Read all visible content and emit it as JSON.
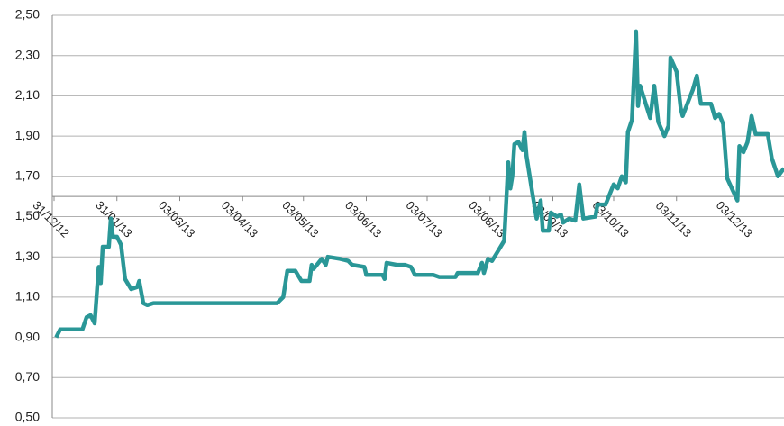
{
  "chart_data": {
    "type": "line",
    "x": [
      "2013-01-01",
      "2013-01-03",
      "2013-01-14",
      "2013-01-16",
      "2013-01-18",
      "2013-01-20",
      "2013-01-22",
      "2013-01-23",
      "2013-01-24",
      "2013-01-27",
      "2013-01-28",
      "2013-01-29",
      "2013-01-31",
      "2013-02-02",
      "2013-02-04",
      "2013-02-07",
      "2013-02-10",
      "2013-02-11",
      "2013-02-13",
      "2013-02-15",
      "2013-02-18",
      "2013-04-20",
      "2013-04-23",
      "2013-04-25",
      "2013-04-29",
      "2013-05-02",
      "2013-05-06",
      "2013-05-07",
      "2013-05-08",
      "2013-05-12",
      "2013-05-14",
      "2013-05-15",
      "2013-05-21",
      "2013-05-25",
      "2013-05-27",
      "2013-06-02",
      "2013-06-03",
      "2013-06-11",
      "2013-06-12",
      "2013-06-13",
      "2013-06-18",
      "2013-06-22",
      "2013-06-25",
      "2013-06-27",
      "2013-07-06",
      "2013-07-09",
      "2013-07-17",
      "2013-07-18",
      "2013-07-28",
      "2013-07-30",
      "2013-07-31",
      "2013-08-02",
      "2013-08-04",
      "2013-08-07",
      "2013-08-10",
      "2013-08-12",
      "2013-08-13",
      "2013-08-14",
      "2013-08-15",
      "2013-08-17",
      "2013-08-19",
      "2013-08-20",
      "2013-08-21",
      "2013-08-24",
      "2013-08-26",
      "2013-08-28",
      "2013-08-29",
      "2013-09-01",
      "2013-09-02",
      "2013-09-05",
      "2013-09-07",
      "2013-09-08",
      "2013-09-11",
      "2013-09-14",
      "2013-09-16",
      "2013-09-18",
      "2013-09-24",
      "2013-09-25",
      "2013-09-29",
      "2013-10-01",
      "2013-10-03",
      "2013-10-05",
      "2013-10-07",
      "2013-10-09",
      "2013-10-10",
      "2013-10-12",
      "2013-10-14",
      "2013-10-15",
      "2013-10-16",
      "2013-10-21",
      "2013-10-23",
      "2013-10-25",
      "2013-10-28",
      "2013-10-30",
      "2013-10-31",
      "2013-11-03",
      "2013-11-05",
      "2013-11-06",
      "2013-11-11",
      "2013-11-13",
      "2013-11-15",
      "2013-11-20",
      "2013-11-22",
      "2013-11-24",
      "2013-11-26",
      "2013-11-28",
      "2013-12-03",
      "2013-12-04",
      "2013-12-06",
      "2013-12-08",
      "2013-12-10",
      "2013-12-12",
      "2013-12-18",
      "2013-12-20",
      "2013-12-23",
      "2013-12-26"
    ],
    "series": [
      {
        "color": "#2a9797",
        "values": [
          0.9,
          0.94,
          0.94,
          1.0,
          1.01,
          0.97,
          1.25,
          1.17,
          1.35,
          1.35,
          1.49,
          1.4,
          1.4,
          1.36,
          1.19,
          1.14,
          1.15,
          1.18,
          1.07,
          1.06,
          1.07,
          1.07,
          1.1,
          1.23,
          1.23,
          1.18,
          1.18,
          1.26,
          1.24,
          1.29,
          1.26,
          1.3,
          1.29,
          1.28,
          1.26,
          1.25,
          1.21,
          1.21,
          1.19,
          1.27,
          1.26,
          1.26,
          1.25,
          1.21,
          1.21,
          1.2,
          1.2,
          1.22,
          1.22,
          1.27,
          1.22,
          1.29,
          1.28,
          1.33,
          1.38,
          1.77,
          1.64,
          1.7,
          1.86,
          1.87,
          1.83,
          1.92,
          1.8,
          1.61,
          1.49,
          1.58,
          1.43,
          1.43,
          1.52,
          1.5,
          1.51,
          1.47,
          1.49,
          1.48,
          1.66,
          1.49,
          1.5,
          1.56,
          1.56,
          1.61,
          1.66,
          1.64,
          1.7,
          1.67,
          1.92,
          1.98,
          2.42,
          2.05,
          2.15,
          1.99,
          2.15,
          1.97,
          1.9,
          1.95,
          2.29,
          2.22,
          2.04,
          2.0,
          2.13,
          2.2,
          2.06,
          2.06,
          1.99,
          2.01,
          1.96,
          1.69,
          1.58,
          1.85,
          1.82,
          1.87,
          2.0,
          1.91,
          1.91,
          1.79,
          1.7,
          1.74
        ]
      }
    ],
    "xlim": [
      "2012-12-31",
      "2013-12-26"
    ],
    "xticks": [
      {
        "value": "2012-12-31",
        "label": "31/12/12"
      },
      {
        "value": "2013-01-31",
        "label": "31/01/13"
      },
      {
        "value": "2013-03-03",
        "label": "03/03/13"
      },
      {
        "value": "2013-04-03",
        "label": "03/04/13"
      },
      {
        "value": "2013-05-03",
        "label": "03/05/13"
      },
      {
        "value": "2013-06-03",
        "label": "03/06/13"
      },
      {
        "value": "2013-07-03",
        "label": "03/07/13"
      },
      {
        "value": "2013-08-03",
        "label": "03/08/13"
      },
      {
        "value": "2013-09-03",
        "label": "03/09/13"
      },
      {
        "value": "2013-10-03",
        "label": "03/10/13"
      },
      {
        "value": "2013-11-03",
        "label": "03/11/13"
      },
      {
        "value": "2013-12-03",
        "label": "03/12/13"
      }
    ],
    "ylim": [
      0.5,
      2.5
    ],
    "yticks": [
      {
        "value": 0.5,
        "label": "0,50"
      },
      {
        "value": 0.7,
        "label": "0,70"
      },
      {
        "value": 0.9,
        "label": "0,90"
      },
      {
        "value": 1.1,
        "label": "1,10"
      },
      {
        "value": 1.3,
        "label": "1,30"
      },
      {
        "value": 1.5,
        "label": "1,50"
      },
      {
        "value": 1.7,
        "label": "1,70"
      },
      {
        "value": 1.9,
        "label": "1,90"
      },
      {
        "value": 2.1,
        "label": "2,10"
      },
      {
        "value": 2.3,
        "label": "2,30"
      },
      {
        "value": 2.5,
        "label": "2,50"
      }
    ],
    "x_axis_at": 1.6,
    "grid": true
  }
}
